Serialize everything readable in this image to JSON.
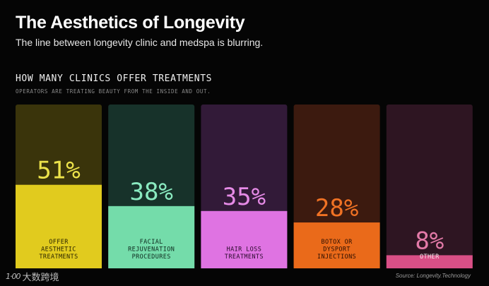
{
  "header": {
    "title": "The Aesthetics of Longevity",
    "subtitle": "The line between longevity clinic and medspa is blurring."
  },
  "chart_data": {
    "type": "bar",
    "title": "HOW MANY CLINICS OFFER TREATMENTS",
    "subtitle": "OPERATORS ARE TREATING BEAUTY FROM THE INSIDE AND OUT.",
    "ylim": [
      0,
      100
    ],
    "categories": [
      "OFFER\nAESTHETIC\nTREATMENTS",
      "FACIAL\nREJUVENATION\nPROCEDURES",
      "HAIR LOSS\nTREATMENTS",
      "BOTOX OR\nDYSPORT\nINJECTIONS",
      "OTHER"
    ],
    "values": [
      51,
      38,
      35,
      28,
      8
    ],
    "value_labels": [
      "51%",
      "38%",
      "35%",
      "28%",
      "8%"
    ],
    "colors": {
      "fill": [
        "#e1cb1e",
        "#74dcaa",
        "#df73e2",
        "#ea6a1a",
        "#d94f86"
      ],
      "background": [
        "#3a340b",
        "#17322a",
        "#321a38",
        "#3c1a0f",
        "#2e1522"
      ],
      "value_text": [
        "#ece24a",
        "#8aeac0",
        "#e58ae6",
        "#f07224",
        "#e37aa8"
      ],
      "label_text": [
        "#2a2400",
        "#0e2a1e",
        "#2a0a2c",
        "#2a0e02",
        "#fce8f0"
      ]
    }
  },
  "footer": {
    "watermark_logo": "1·00",
    "watermark_text": "大数跨境",
    "source": "Source: Longevity.Technology"
  }
}
